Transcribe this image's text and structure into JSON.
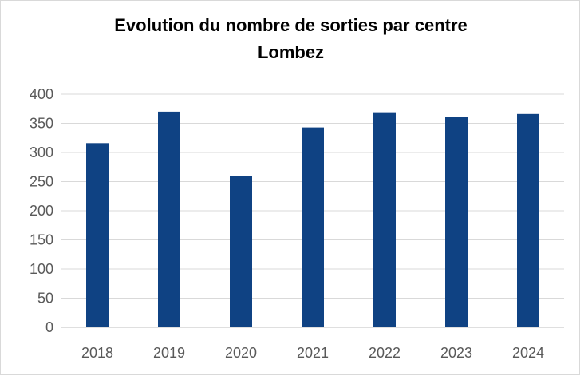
{
  "chart_data": {
    "type": "bar",
    "title_line1": "Evolution du nombre de sorties par centre",
    "title_line2": "Lombez",
    "xlabel": "",
    "ylabel": "",
    "categories": [
      "2018",
      "2019",
      "2020",
      "2021",
      "2022",
      "2023",
      "2024"
    ],
    "values": [
      316,
      370,
      259,
      343,
      369,
      361,
      366
    ],
    "ylim": [
      0,
      400
    ],
    "yticks": [
      0,
      50,
      100,
      150,
      200,
      250,
      300,
      350,
      400
    ],
    "grid": true,
    "legend": "none",
    "bar_color": "#0f4283",
    "grid_color": "#d9d9d9",
    "axis_color": "#bfbfbf",
    "tick_color": "#595959"
  }
}
